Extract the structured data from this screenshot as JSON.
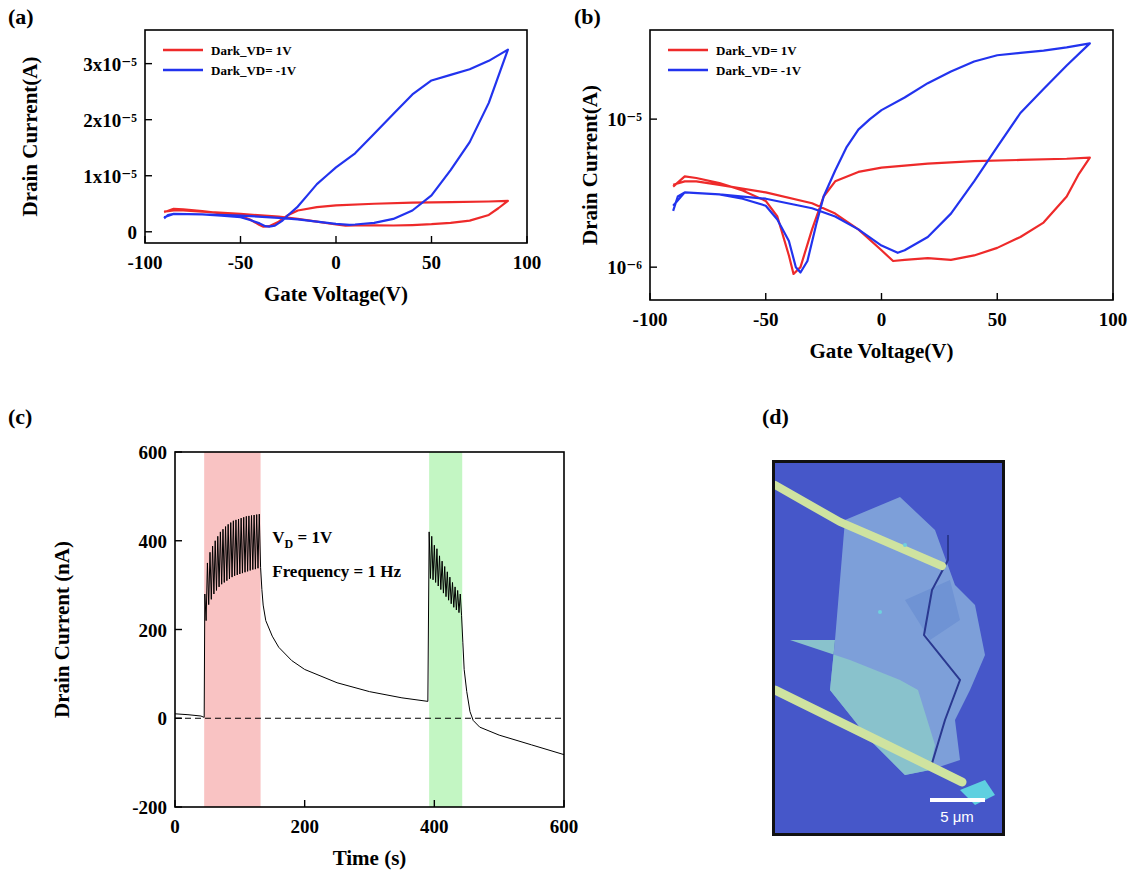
{
  "chart_data": [
    {
      "type": "line",
      "panel": "(a)",
      "x_label": "Gate Voltage(V)",
      "y_label": "Drain Current(A)",
      "xlim": [
        -100,
        100
      ],
      "xticks": [
        -100,
        -50,
        0,
        50,
        100
      ],
      "ylim": [
        -2e-06,
        3.6e-05
      ],
      "yticks": [
        0,
        {
          "value": 1e-05,
          "label": "1x10⁻⁵"
        },
        {
          "value": 2e-05,
          "label": "2x10⁻⁵"
        },
        {
          "value": 3e-05,
          "label": "3x10⁻⁵"
        }
      ],
      "legend": "upper left",
      "series": [
        {
          "name": "Dark_VD= 1V",
          "color": "#ee2a2a",
          "x": [
            -90,
            -85,
            -80,
            -70,
            -60,
            -50,
            -45,
            -40,
            -38,
            -35,
            -30,
            -25,
            -20,
            -10,
            0,
            20,
            40,
            60,
            80,
            90,
            85,
            80,
            70,
            60,
            50,
            40,
            30,
            20,
            10,
            5,
            0,
            -10,
            -20,
            -30,
            -50,
            -70,
            -80,
            -85,
            -90
          ],
          "values": [
            3.5e-06,
            4.1e-06,
            4e-06,
            3.7e-06,
            3.3e-06,
            2.8e-06,
            2.2e-06,
            1.2e-06,
            9e-07,
            1e-06,
            1.8e-06,
            3e-06,
            3.8e-06,
            4.4e-06,
            4.7e-06,
            5e-06,
            5.2e-06,
            5.3e-06,
            5.4e-06,
            5.5e-06,
            4.2e-06,
            3e-06,
            2e-06,
            1.6e-06,
            1.35e-06,
            1.2e-06,
            1.12e-06,
            1.15e-06,
            1.12e-06,
            1.1e-06,
            1.3e-06,
            1.8e-06,
            2.3e-06,
            2.7e-06,
            3.2e-06,
            3.6e-06,
            3.8e-06,
            3.8e-06,
            3.6e-06
          ]
        },
        {
          "name": "Dark_VD= -1V",
          "color": "#2233ee",
          "x": [
            -90,
            -88,
            -85,
            -70,
            -60,
            -50,
            -45,
            -40,
            -37,
            -35,
            -32,
            -28,
            -25,
            -20,
            -15,
            -10,
            -5,
            0,
            10,
            20,
            30,
            40,
            50,
            60,
            70,
            80,
            90,
            80,
            70,
            60,
            50,
            40,
            30,
            20,
            10,
            7,
            0,
            -10,
            -20,
            -30,
            -50,
            -70,
            -85,
            -90
          ],
          "values": [
            2.4e-06,
            3e-06,
            3.2e-06,
            3.1e-06,
            2.9e-06,
            2.6e-06,
            2.1e-06,
            1.5e-06,
            1e-06,
            9.2e-07,
            1.1e-06,
            2e-06,
            3e-06,
            4.5e-06,
            6.5e-06,
            8.5e-06,
            1e-05,
            1.15e-05,
            1.4e-05,
            1.75e-05,
            2.1e-05,
            2.45e-05,
            2.7e-05,
            2.8e-05,
            2.9e-05,
            3.05e-05,
            3.25e-05,
            2.3e-05,
            1.6e-05,
            1.1e-05,
            6.5e-06,
            3.8e-06,
            2.3e-06,
            1.6e-06,
            1.3e-06,
            1.25e-06,
            1.4e-06,
            1.8e-06,
            2.2e-06,
            2.5e-06,
            2.9e-06,
            3.1e-06,
            3.2e-06,
            2.6e-06
          ]
        }
      ]
    },
    {
      "type": "line",
      "panel": "(b)",
      "x_label": "Gate Voltage(V)",
      "y_label": "Drain Current(A)",
      "log": "y",
      "xlim": [
        -100,
        100
      ],
      "xticks": [
        -100,
        -50,
        0,
        50,
        100
      ],
      "ylim": [
        6e-07,
        4e-05
      ],
      "yticks": [
        {
          "value": 1e-06,
          "label": "10⁻⁶"
        },
        {
          "value": 1e-05,
          "label": "10⁻⁵"
        }
      ],
      "legend": "upper left",
      "series": [
        {
          "name": "Dark_VD= 1V",
          "color": "#ee2a2a",
          "x": [
            -90,
            -85,
            -80,
            -70,
            -60,
            -50,
            -45,
            -40,
            -38,
            -35,
            -30,
            -25,
            -20,
            -10,
            0,
            20,
            40,
            60,
            80,
            90,
            85,
            80,
            70,
            60,
            50,
            40,
            30,
            20,
            10,
            5,
            0,
            -10,
            -20,
            -30,
            -50,
            -70,
            -80,
            -85,
            -90
          ],
          "values": [
            3.5e-06,
            4.1e-06,
            4e-06,
            3.7e-06,
            3.3e-06,
            2.8e-06,
            2.2e-06,
            1.2e-06,
            9e-07,
            1e-06,
            1.8e-06,
            3e-06,
            3.8e-06,
            4.4e-06,
            4.7e-06,
            5e-06,
            5.2e-06,
            5.3e-06,
            5.4e-06,
            5.5e-06,
            4.2e-06,
            3e-06,
            2e-06,
            1.6e-06,
            1.35e-06,
            1.2e-06,
            1.12e-06,
            1.15e-06,
            1.12e-06,
            1.1e-06,
            1.3e-06,
            1.8e-06,
            2.3e-06,
            2.7e-06,
            3.2e-06,
            3.6e-06,
            3.8e-06,
            3.8e-06,
            3.6e-06
          ]
        },
        {
          "name": "Dark_VD= -1V",
          "color": "#2233ee",
          "x": [
            -90,
            -88,
            -85,
            -70,
            -60,
            -50,
            -45,
            -40,
            -37,
            -35,
            -32,
            -28,
            -25,
            -20,
            -15,
            -10,
            -5,
            0,
            10,
            20,
            30,
            40,
            50,
            60,
            70,
            80,
            90,
            80,
            70,
            60,
            50,
            40,
            30,
            20,
            10,
            7,
            0,
            -10,
            -20,
            -30,
            -50,
            -70,
            -85,
            -90
          ],
          "values": [
            2.4e-06,
            3e-06,
            3.2e-06,
            3.1e-06,
            2.9e-06,
            2.6e-06,
            2.1e-06,
            1.5e-06,
            1e-06,
            9.2e-07,
            1.1e-06,
            2e-06,
            3e-06,
            4.5e-06,
            6.5e-06,
            8.5e-06,
            1e-05,
            1.15e-05,
            1.4e-05,
            1.75e-05,
            2.1e-05,
            2.45e-05,
            2.7e-05,
            2.8e-05,
            2.9e-05,
            3.05e-05,
            3.25e-05,
            2.3e-05,
            1.6e-05,
            1.1e-05,
            6.5e-06,
            3.8e-06,
            2.3e-06,
            1.6e-06,
            1.3e-06,
            1.25e-06,
            1.4e-06,
            1.8e-06,
            2.2e-06,
            2.5e-06,
            2.9e-06,
            3.1e-06,
            3.2e-06,
            2.6e-06
          ]
        }
      ]
    },
    {
      "type": "line",
      "panel": "(c)",
      "x_label": "Time (s)",
      "y_label": "Drain Current (nA)",
      "xlim": [
        0,
        600
      ],
      "xticks": [
        0,
        200,
        400,
        600
      ],
      "ylim": [
        -200,
        600
      ],
      "yticks": [
        -200,
        0,
        200,
        400,
        600
      ],
      "spans": [
        {
          "x0": 45,
          "x1": 132,
          "color": "#f9c3c3"
        },
        {
          "x0": 392,
          "x1": 443,
          "color": "#c3f6c3"
        }
      ],
      "hlines": [
        {
          "value": 0,
          "line_style": "dashed"
        }
      ],
      "annotations": [
        {
          "text": "VD = 1V",
          "x": 150,
          "y": 395
        },
        {
          "text": "Frequency = 1 Hz",
          "x": 150,
          "y": 318
        }
      ],
      "series": [
        {
          "color": "#000000",
          "x": [
            0,
            20,
            40,
            45,
            46,
            48,
            50,
            52,
            54,
            56,
            58,
            60,
            62,
            64,
            66,
            68,
            70,
            72,
            74,
            76,
            78,
            80,
            82,
            84,
            86,
            88,
            90,
            92,
            94,
            96,
            98,
            100,
            102,
            104,
            106,
            108,
            110,
            112,
            114,
            116,
            118,
            120,
            122,
            124,
            126,
            128,
            130,
            132,
            134,
            136,
            140,
            150,
            160,
            180,
            200,
            250,
            300,
            350,
            390,
            392,
            394,
            396,
            398,
            400,
            402,
            404,
            406,
            408,
            410,
            412,
            414,
            416,
            418,
            420,
            422,
            424,
            426,
            428,
            430,
            432,
            434,
            436,
            438,
            440,
            442,
            444,
            446,
            450,
            455,
            460,
            470,
            500,
            550,
            600
          ],
          "values": [
            10,
            8,
            5,
            2,
            280,
            220,
            350,
            256,
            374,
            268,
            388,
            280,
            400,
            288,
            410,
            296,
            420,
            302,
            426,
            306,
            432,
            310,
            437,
            314,
            441,
            318,
            445,
            321,
            447,
            323,
            449,
            325,
            451,
            327,
            453,
            329,
            455,
            331,
            456,
            333,
            457,
            335,
            458,
            336,
            459,
            338,
            460,
            340,
            290,
            255,
            220,
            185,
            160,
            130,
            110,
            80,
            60,
            46,
            38,
            420,
            315,
            410,
            312,
            390,
            306,
            382,
            298,
            366,
            290,
            354,
            282,
            342,
            274,
            330,
            266,
            318,
            258,
            306,
            250,
            296,
            244,
            288,
            238,
            280,
            232,
            170,
            110,
            60,
            15,
            -5,
            -20,
            -38,
            -60,
            -82
          ]
        }
      ]
    }
  ],
  "image_panel": {
    "panel": "(d)",
    "scale_bar_label": "5 μm"
  }
}
